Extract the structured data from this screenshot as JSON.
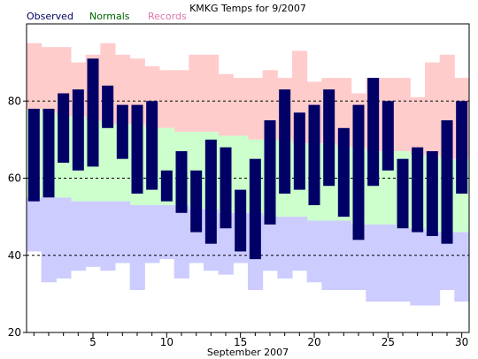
{
  "chart_data": {
    "type": "bar",
    "title": "KMKG Temps for 9/2007",
    "xlabel": "September 2007",
    "ylabel": "",
    "ylim": [
      20,
      100
    ],
    "xlim": [
      0.5,
      30.5
    ],
    "yticks": [
      20,
      40,
      60,
      80
    ],
    "xticks": [
      5,
      10,
      15,
      20,
      25,
      30
    ],
    "grid": {
      "horizontal_dashed_at": [
        40,
        60,
        80
      ]
    },
    "legend": {
      "placement": "top-left",
      "entries": [
        {
          "label": "Observed",
          "color": "#000066"
        },
        {
          "label": "Normals",
          "color": "#006600"
        },
        {
          "label": "Records",
          "color": "#dd77aa"
        }
      ]
    },
    "colors": {
      "observed": "#000066",
      "normals": "#ccffcc",
      "record_high_band": "#ffcccc",
      "record_low_band": "#ccccff"
    },
    "days": [
      1,
      2,
      3,
      4,
      5,
      6,
      7,
      8,
      9,
      10,
      11,
      12,
      13,
      14,
      15,
      16,
      17,
      18,
      19,
      20,
      21,
      22,
      23,
      24,
      25,
      26,
      27,
      28,
      29,
      30
    ],
    "series": [
      {
        "name": "Observed",
        "high": [
          78,
          78,
          82,
          83,
          91,
          84,
          79,
          79,
          80,
          62,
          67,
          62,
          70,
          68,
          57,
          65,
          75,
          83,
          77,
          79,
          83,
          73,
          79,
          86,
          80,
          65,
          68,
          67,
          75,
          80
        ],
        "low": [
          54,
          55,
          64,
          62,
          63,
          73,
          65,
          56,
          57,
          54,
          51,
          46,
          43,
          47,
          41,
          39,
          48,
          56,
          57,
          53,
          58,
          50,
          44,
          58,
          62,
          47,
          46,
          45,
          43,
          56
        ]
      },
      {
        "name": "Normals",
        "high": [
          78,
          77,
          76,
          76,
          75,
          74,
          74,
          74,
          73,
          73,
          72,
          72,
          72,
          71,
          71,
          70,
          70,
          70,
          69,
          69,
          69,
          68,
          68,
          67,
          67,
          67,
          66,
          66,
          65,
          65
        ],
        "low": [
          55,
          55,
          55,
          54,
          54,
          54,
          54,
          53,
          53,
          53,
          53,
          52,
          52,
          51,
          51,
          51,
          50,
          50,
          50,
          49,
          49,
          49,
          48,
          48,
          48,
          47,
          47,
          46,
          46,
          46
        ]
      },
      {
        "name": "Records",
        "high": [
          95,
          94,
          94,
          90,
          92,
          95,
          92,
          91,
          89,
          88,
          88,
          92,
          92,
          87,
          86,
          86,
          88,
          86,
          93,
          85,
          86,
          86,
          82,
          86,
          86,
          86,
          81,
          90,
          92,
          86
        ],
        "low": [
          41,
          33,
          34,
          36,
          37,
          36,
          38,
          31,
          38,
          39,
          34,
          38,
          36,
          35,
          38,
          31,
          36,
          34,
          36,
          33,
          31,
          31,
          31,
          28,
          28,
          28,
          27,
          27,
          31,
          28
        ]
      }
    ]
  }
}
